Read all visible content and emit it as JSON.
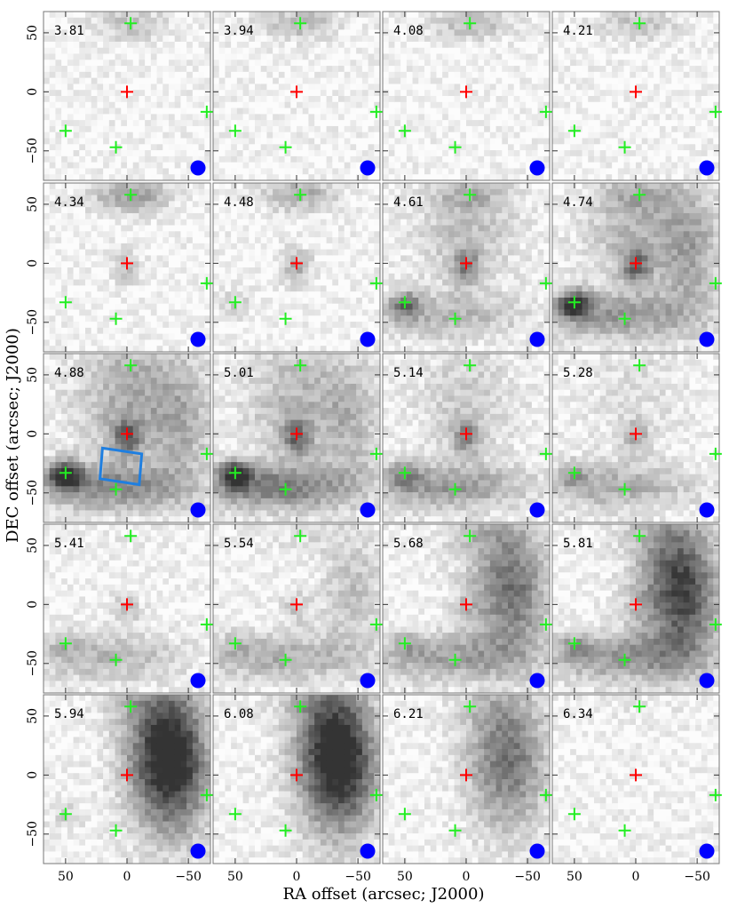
{
  "chart_data": {
    "type": "heatmap",
    "panel_labels": [
      "3.81",
      "3.94",
      "4.08",
      "4.21",
      "4.34",
      "4.48",
      "4.61",
      "4.74",
      "4.88",
      "5.01",
      "5.14",
      "5.28",
      "5.41",
      "5.54",
      "5.68",
      "5.81",
      "5.94",
      "6.08",
      "6.21",
      "6.34"
    ],
    "xlabel": "RA offset (arcsec; J2000)",
    "ylabel": "DEC offset (arcsec; J2000)",
    "xlim": [
      68,
      -68
    ],
    "ylim": [
      -75,
      68
    ],
    "xticks": [
      50,
      0,
      -50
    ],
    "xtick_labels": [
      "50",
      "0",
      "−50"
    ],
    "yticks": [
      50,
      0,
      -50
    ],
    "ytick_labels": [
      "50",
      "0",
      "−50"
    ],
    "red_marker": {
      "x": 0,
      "y": 0,
      "color": "#ff0000"
    },
    "green_markers": [
      {
        "x": 50,
        "y": -33
      },
      {
        "x": 9,
        "y": -47
      },
      {
        "x": -3,
        "y": 58
      },
      {
        "x": -65,
        "y": -17
      }
    ],
    "green_color": "#22ee22",
    "beam_color": "#0000ff",
    "box_panel": 8,
    "box_color": "#1f7fe0",
    "box_corners": [
      [
        20,
        -12
      ],
      [
        -12,
        -17
      ],
      [
        -10,
        -43
      ],
      [
        22,
        -38
      ]
    ],
    "emission_features": [
      {
        "panels": [
          0,
          1,
          2,
          3,
          4,
          5,
          6,
          7,
          8,
          9,
          10,
          11,
          12,
          13,
          14,
          15,
          16,
          17,
          18,
          19
        ],
        "x": -3,
        "y": 58,
        "sx": 22,
        "sy": 10,
        "amp": [
          0.25,
          0.3,
          0.3,
          0.25,
          0.45,
          0.35,
          0.25,
          0.25,
          0.15,
          0.1,
          0.05,
          0.05,
          0.05,
          0.1,
          0.15,
          0.1,
          0.1,
          0.1,
          0.05,
          0.05
        ]
      },
      {
        "panels": [
          4,
          5,
          6,
          7,
          8,
          9,
          10,
          11,
          12,
          13,
          14,
          15
        ],
        "x": 0,
        "y": -3,
        "sx": 8,
        "sy": 10,
        "amp": [
          0.3,
          0.4,
          0.45,
          0.55,
          0.6,
          0.55,
          0.45,
          0.3,
          0.25,
          0.2,
          0.15,
          0.1
        ]
      },
      {
        "panels": [
          5,
          6,
          7,
          8,
          9,
          10,
          11,
          12,
          13,
          14,
          15,
          16
        ],
        "x": 50,
        "y": -35,
        "sx": 9,
        "sy": 8,
        "amp": [
          0.2,
          0.55,
          0.9,
          0.95,
          0.85,
          0.4,
          0.3,
          0.2,
          0.15,
          0.2,
          0.25,
          0.2
        ]
      },
      {
        "panels": [
          6,
          7,
          8,
          9,
          10,
          11,
          12,
          13,
          14,
          15
        ],
        "x": 15,
        "y": -45,
        "sx": 45,
        "sy": 14,
        "amp": [
          0.3,
          0.45,
          0.55,
          0.6,
          0.45,
          0.35,
          0.3,
          0.35,
          0.4,
          0.45
        ]
      },
      {
        "panels": [
          6,
          7,
          8,
          9,
          10,
          11
        ],
        "x": 0,
        "y": 25,
        "sx": 30,
        "sy": 30,
        "amp": [
          0.25,
          0.3,
          0.35,
          0.3,
          0.2,
          0.1
        ]
      },
      {
        "panels": [
          7,
          8,
          9,
          13,
          14,
          15,
          16,
          17,
          18
        ],
        "x": -45,
        "y": 10,
        "sx": 18,
        "sy": 40,
        "amp": [
          0.35,
          0.3,
          0.25,
          0.25,
          0.4,
          0.55,
          0.6,
          0.55,
          0.3
        ]
      },
      {
        "panels": [
          14,
          15,
          16,
          17,
          18
        ],
        "x": -25,
        "y": 20,
        "sx": 20,
        "sy": 45,
        "amp": [
          0.35,
          0.5,
          0.75,
          0.8,
          0.45
        ]
      }
    ]
  }
}
